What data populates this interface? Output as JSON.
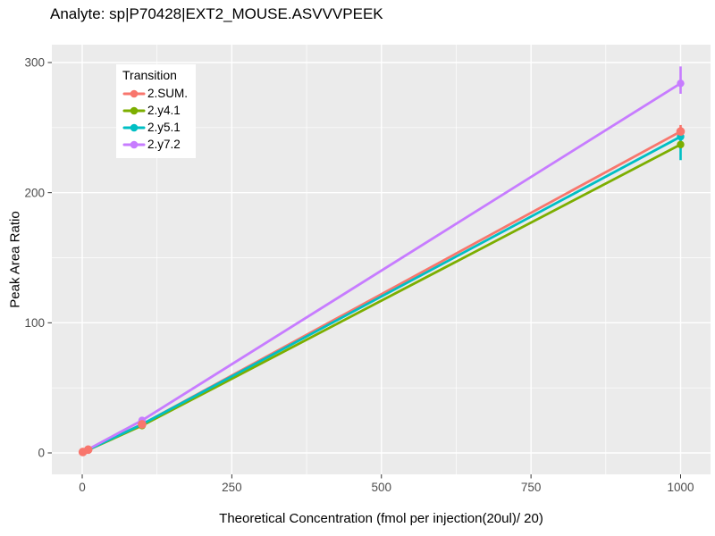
{
  "title": "Analyte: sp|P70428|EXT2_MOUSE.ASVVVPEEK",
  "chart_data": {
    "type": "line",
    "title": "Analyte: sp|P70428|EXT2_MOUSE.ASVVVPEEK",
    "xlabel": "Theoretical Concentration (fmol per injection(20ul)/ 20)",
    "ylabel": "Peak Area Ratio",
    "legend_title": "Transition",
    "legend_position": "inside-top-left",
    "grid": true,
    "panel_bg": "#EBEBEB",
    "grid_color": "#FFFFFF",
    "tick_color": "#333333",
    "tick_label_color": "#4D4D4D",
    "x_ticks": [
      0,
      250,
      500,
      750,
      1000
    ],
    "x_minor_ticks": [
      125,
      375,
      625,
      875
    ],
    "y_ticks": [
      0,
      100,
      200,
      300
    ],
    "y_minor_ticks": [
      50,
      150,
      250
    ],
    "xlim": [
      -50,
      1050
    ],
    "ylim": [
      -12,
      312
    ],
    "series": [
      {
        "name": "2.SUM.",
        "color": "#F8766D",
        "x": [
          1,
          10,
          100,
          1000
        ],
        "y": [
          0.7,
          2.5,
          22,
          247
        ],
        "errorbars": [
          {
            "x": 1000,
            "low": 243,
            "high": 252
          }
        ]
      },
      {
        "name": "2.y4.1",
        "color": "#7CAE00",
        "x": [
          1,
          10,
          100,
          1000
        ],
        "y": [
          0.6,
          2.3,
          21,
          237
        ],
        "errorbars": [
          {
            "x": 1000,
            "low": 234,
            "high": 240
          }
        ]
      },
      {
        "name": "2.y5.1",
        "color": "#00BFC4",
        "x": [
          1,
          10,
          100,
          1000
        ],
        "y": [
          0.7,
          2.4,
          22,
          243
        ],
        "errorbars": [
          {
            "x": 1000,
            "low": 225,
            "high": 247
          }
        ]
      },
      {
        "name": "2.y7.2",
        "color": "#C77CFF",
        "x": [
          1,
          10,
          100,
          1000
        ],
        "y": [
          0.8,
          2.8,
          25,
          284
        ],
        "errorbars": [
          {
            "x": 1000,
            "low": 276,
            "high": 297
          }
        ]
      }
    ]
  }
}
